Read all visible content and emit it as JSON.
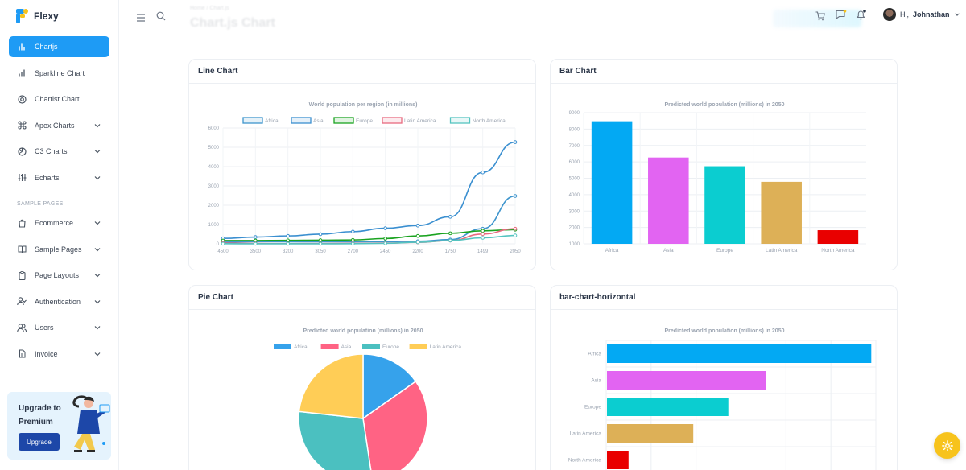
{
  "brand": {
    "name": "Flexy"
  },
  "sidebar": {
    "items": [
      {
        "label": "Chartjs",
        "icon": "bar-chart-icon",
        "active": true,
        "has_chevron": false
      },
      {
        "label": "Sparkline Chart",
        "icon": "bar-chart-icon",
        "active": false,
        "has_chevron": false
      },
      {
        "label": "Chartist Chart",
        "icon": "target-icon",
        "active": false,
        "has_chevron": false
      },
      {
        "label": "Apex Charts",
        "icon": "command-icon",
        "active": false,
        "has_chevron": true
      },
      {
        "label": "C3 Charts",
        "icon": "aperture-icon",
        "active": false,
        "has_chevron": true
      },
      {
        "label": "Echarts",
        "icon": "sliders-icon",
        "active": false,
        "has_chevron": true
      }
    ],
    "section_label": "SAMPLE PAGES",
    "items2": [
      {
        "label": "Ecommerce",
        "icon": "shopping-bag-icon",
        "has_chevron": true
      },
      {
        "label": "Sample Pages",
        "icon": "book-open-icon",
        "has_chevron": true
      },
      {
        "label": "Page Layouts",
        "icon": "clipboard-icon",
        "has_chevron": true
      },
      {
        "label": "Authentication",
        "icon": "user-check-icon",
        "has_chevron": true
      },
      {
        "label": "Users",
        "icon": "users-icon",
        "has_chevron": true
      },
      {
        "label": "Invoice",
        "icon": "file-icon",
        "has_chevron": true
      }
    ],
    "upgrade": {
      "text": "Upgrade to Premium",
      "button": "Upgrade"
    }
  },
  "header": {
    "page_title": "Chart.js Chart",
    "breadcrumb": "Home / Chart.js",
    "greeting": "Hi,",
    "username": "Johnathan"
  },
  "cards": {
    "line": {
      "title": "Line Chart"
    },
    "bar": {
      "title": "Bar Chart"
    },
    "pie": {
      "title": "Pie Chart"
    },
    "hbar": {
      "title": "bar-chart-horizontal"
    }
  },
  "colors": {
    "primary": "#1e9bf5",
    "africa_line": "#3e95cd",
    "asia_line": "#3e95cd",
    "europe_line": "#3cba9f",
    "latam_line": "#e8c3b9",
    "namerica_line": "#c45850"
  },
  "chart_data": [
    {
      "type": "line",
      "title": "World population per region (in millions)",
      "x": [
        "4500",
        "3500",
        "3200",
        "3050",
        "2700",
        "2450",
        "2200",
        "1750",
        "1499",
        "2050"
      ],
      "ylim": [
        0,
        6000
      ],
      "yticks": [
        "0",
        "1000",
        "2000",
        "3000",
        "4000",
        "5000",
        "6000"
      ],
      "legend_position": "top",
      "grid": true,
      "series": [
        {
          "name": "Africa",
          "color": "#3e95cd",
          "values": [
            86,
            114,
            106,
            106,
            107,
            111,
            133,
            221,
            783,
            2478
          ]
        },
        {
          "name": "Asia",
          "color": "#3a8fd0",
          "values": [
            282,
            350,
            411,
            502,
            635,
            809,
            947,
            1402,
            3700,
            5267
          ]
        },
        {
          "name": "Europe",
          "color": "#1aa320",
          "values": [
            168,
            170,
            178,
            190,
            203,
            276,
            408,
            547,
            675,
            734
          ]
        },
        {
          "name": "Latin America",
          "color": "#e86a7f",
          "values": [
            40,
            20,
            10,
            16,
            24,
            38,
            74,
            167,
            508,
            784
          ]
        },
        {
          "name": "North America",
          "color": "#55c4c0",
          "values": [
            6,
            3,
            2,
            2,
            7,
            26,
            82,
            172,
            312,
            433
          ]
        }
      ]
    },
    {
      "type": "bar",
      "title": "Predicted world population (millions) in 2050",
      "categories": [
        "Africa",
        "Asia",
        "Europe",
        "Latin America",
        "North America"
      ],
      "values": [
        8478,
        6267,
        5734,
        4784,
        1833
      ],
      "colors": [
        "#03a9f3",
        "#e264f2",
        "#0bcdd0",
        "#ddb057",
        "#e90000"
      ],
      "ylim": [
        1000,
        9000
      ],
      "yticks": [
        "1000",
        "2000",
        "3000",
        "4000",
        "5000",
        "6000",
        "7000",
        "8000",
        "9000"
      ],
      "legend_position": "none",
      "grid": true
    },
    {
      "type": "pie",
      "title": "Predicted world population (millions) in 2050",
      "categories": [
        "Africa",
        "Asia",
        "Europe",
        "Latin America"
      ],
      "values": [
        2478,
        5267,
        4734,
        3784
      ],
      "colors": [
        "#36a2eb",
        "#ff6384",
        "#4bc0c0",
        "#ffcd56"
      ],
      "legend_position": "top"
    },
    {
      "type": "bar",
      "orientation": "horizontal",
      "title": "Predicted world population (millions) in 2050",
      "categories": [
        "Africa",
        "Asia",
        "Europe",
        "Latin America",
        "North America"
      ],
      "values": [
        2478,
        5267,
        734,
        784,
        433
      ],
      "display_fraction": [
        0.98,
        0.59,
        0.45,
        0.32,
        0.08
      ],
      "colors": [
        "#03a9f3",
        "#e264f2",
        "#0bcdd0",
        "#ddb057",
        "#e90000"
      ],
      "legend_position": "none",
      "grid": true
    }
  ]
}
